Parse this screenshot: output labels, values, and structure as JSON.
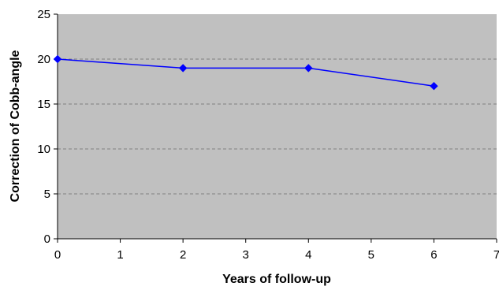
{
  "chart_data": {
    "type": "line",
    "title": "",
    "xlabel": "Years of follow-up",
    "ylabel": "Correction of Cobb-angle",
    "xlim": [
      0,
      7
    ],
    "ylim": [
      0,
      25
    ],
    "xticks": [
      0,
      1,
      2,
      3,
      4,
      5,
      6,
      7
    ],
    "yticks": [
      0,
      5,
      10,
      15,
      20,
      25
    ],
    "grid": "horizontal-dashed",
    "legend": "none",
    "series": [
      {
        "x": [
          0,
          2,
          4,
          6
        ],
        "y": [
          20,
          19,
          19,
          17
        ],
        "color": "#0000FF",
        "marker": "diamond"
      }
    ]
  },
  "colors": {
    "plot_background": "#C0C0C0",
    "gridline": "#808080",
    "axis": "#000000"
  }
}
